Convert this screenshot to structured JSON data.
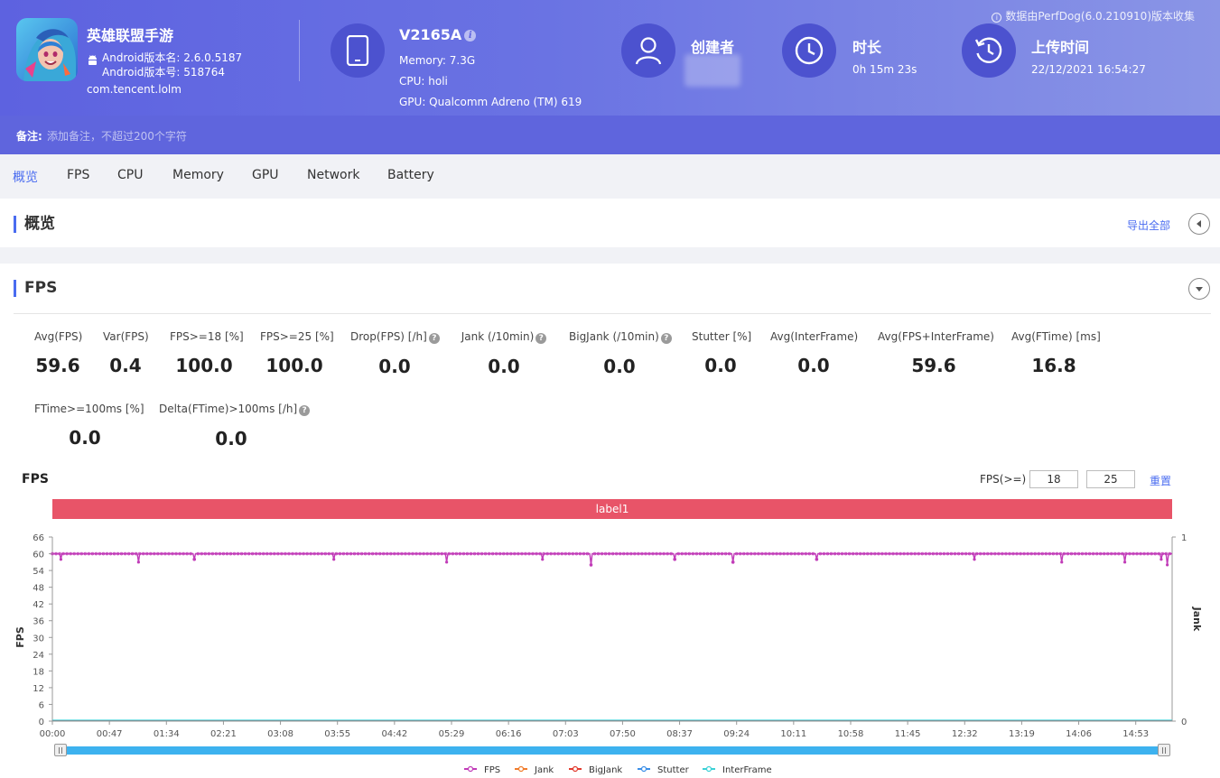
{
  "header": {
    "app_name": "英雄联盟手游",
    "android_version_name": "Android版本名: 2.6.0.5187",
    "android_version_code": "Android版本号: 518764",
    "package": "com.tencent.lolm",
    "device": {
      "model": "V2165A",
      "memory": "Memory: 7.3G",
      "cpu": "CPU: holi",
      "gpu": "GPU: Qualcomm Adreno (TM) 619"
    },
    "creator": {
      "title": "创建者"
    },
    "duration": {
      "title": "时长",
      "value": "0h 15m 23s"
    },
    "upload": {
      "title": "上传时间",
      "value": "22/12/2021 16:54:27"
    },
    "collected_by": "数据由PerfDog(6.0.210910)版本收集",
    "note_label": "备注:",
    "note_placeholder": "添加备注，不超过200个字符"
  },
  "tabs": [
    "概览",
    "FPS",
    "CPU",
    "Memory",
    "GPU",
    "Network",
    "Battery"
  ],
  "overview": {
    "title": "概览",
    "export_label": "导出全部"
  },
  "fps_section": {
    "title": "FPS",
    "metrics_row1": [
      {
        "label": "Avg(FPS)",
        "value": "59.6",
        "help": false
      },
      {
        "label": "Var(FPS)",
        "value": "0.4",
        "help": false
      },
      {
        "label": "FPS>=18 [%]",
        "value": "100.0",
        "help": false
      },
      {
        "label": "FPS>=25 [%]",
        "value": "100.0",
        "help": false
      },
      {
        "label": "Drop(FPS) [/h]",
        "value": "0.0",
        "help": true
      },
      {
        "label": "Jank (/10min)",
        "value": "0.0",
        "help": true
      },
      {
        "label": "BigJank (/10min)",
        "value": "0.0",
        "help": true
      },
      {
        "label": "Stutter [%]",
        "value": "0.0",
        "help": false
      },
      {
        "label": "Avg(InterFrame)",
        "value": "0.0",
        "help": false
      },
      {
        "label": "Avg(FPS+InterFrame)",
        "value": "59.6",
        "help": false
      },
      {
        "label": "Avg(FTime) [ms]",
        "value": "16.8",
        "help": false
      }
    ],
    "metrics_row2": [
      {
        "label": "FTime>=100ms [%]",
        "value": "0.0",
        "help": false
      },
      {
        "label": "Delta(FTime)>100ms [/h]",
        "value": "0.0",
        "help": true
      }
    ],
    "chart_title": "FPS",
    "threshold_label": "FPS(>=)",
    "threshold_1": "18",
    "threshold_2": "25",
    "reset_label": "重置",
    "label_bar": "label1"
  },
  "chart_data": {
    "type": "line",
    "ylabel": "FPS",
    "ylabel_right": "Jank",
    "ylim": [
      0,
      66
    ],
    "yticks": [
      "0",
      "6",
      "12",
      "18",
      "24",
      "30",
      "36",
      "42",
      "48",
      "54",
      "60",
      "66"
    ],
    "y2ticks": [
      "0",
      "1"
    ],
    "y2lim": [
      0,
      1
    ],
    "x_ticks": [
      "00:00",
      "00:47",
      "01:34",
      "02:21",
      "03:08",
      "03:55",
      "04:42",
      "05:29",
      "06:16",
      "07:03",
      "07:50",
      "08:37",
      "09:24",
      "10:11",
      "10:58",
      "11:45",
      "12:32",
      "13:19",
      "14:06",
      "14:53"
    ],
    "x_range_seconds": [
      0,
      923
    ],
    "fps_dips": [
      {
        "t": 7,
        "fps": 58
      },
      {
        "t": 71,
        "fps": 57
      },
      {
        "t": 117,
        "fps": 58
      },
      {
        "t": 232,
        "fps": 58
      },
      {
        "t": 325,
        "fps": 57
      },
      {
        "t": 404,
        "fps": 58
      },
      {
        "t": 444,
        "fps": 56
      },
      {
        "t": 513,
        "fps": 58
      },
      {
        "t": 561,
        "fps": 57
      },
      {
        "t": 630,
        "fps": 58
      },
      {
        "t": 760,
        "fps": 58
      },
      {
        "t": 832,
        "fps": 57
      },
      {
        "t": 884,
        "fps": 57
      },
      {
        "t": 914,
        "fps": 58
      },
      {
        "t": 919,
        "fps": 56
      }
    ],
    "fps_baseline": 60,
    "series": [
      {
        "name": "FPS",
        "color": "#c13cb8"
      },
      {
        "name": "Jank",
        "color": "#f07c2c"
      },
      {
        "name": "BigJank",
        "color": "#e23b2e"
      },
      {
        "name": "Stutter",
        "color": "#3b8fe8"
      },
      {
        "name": "InterFrame",
        "color": "#3bd1d6"
      }
    ],
    "legend_position": "bottom-center"
  }
}
